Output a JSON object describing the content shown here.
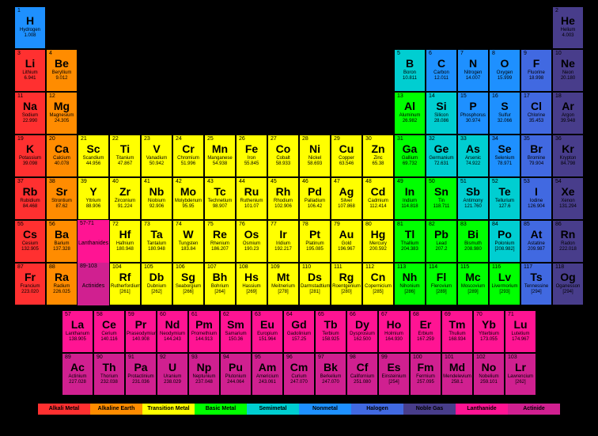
{
  "colors": {
    "alkali": "#ff3030",
    "alkaline": "#ff8c00",
    "transition": "#ffff00",
    "basic": "#00ff00",
    "semimetal": "#00ced1",
    "nonmetal": "#1e90ff",
    "halogen": "#4169e1",
    "noble": "#483d8b",
    "lanthanide": "#ff1493",
    "actinide": "#d02090",
    "bg": "#000000"
  },
  "cell": {
    "w": 40,
    "h": 54
  },
  "legend": [
    {
      "label": "Alkali Metal",
      "color": "#ff3030"
    },
    {
      "label": "Alkaline Earth",
      "color": "#ff8c00"
    },
    {
      "label": "Transition Metal",
      "color": "#ffff00"
    },
    {
      "label": "Basic Metal",
      "color": "#00ff00"
    },
    {
      "label": "Semimetal",
      "color": "#00ced1"
    },
    {
      "label": "Nonmetal",
      "color": "#1e90ff"
    },
    {
      "label": "Halogen",
      "color": "#4169e1"
    },
    {
      "label": "Noble Gas",
      "color": "#483d8b"
    },
    {
      "label": "Lanthanide",
      "color": "#ff1493"
    },
    {
      "label": "Actinide",
      "color": "#d02090"
    }
  ],
  "placeholders": [
    {
      "row": 5,
      "col": 2,
      "range": "57-71",
      "label": "Lanthanides",
      "cat": "lanthanide"
    },
    {
      "row": 6,
      "col": 2,
      "range": "89-103",
      "label": "Actinides",
      "cat": "actinide"
    }
  ],
  "elements": [
    {
      "n": 1,
      "s": "H",
      "nm": "Hydrogen",
      "m": "1.008",
      "r": 0,
      "c": 0,
      "cat": "nonmetal"
    },
    {
      "n": 2,
      "s": "He",
      "nm": "Helium",
      "m": "4.003",
      "r": 0,
      "c": 17,
      "cat": "noble"
    },
    {
      "n": 3,
      "s": "Li",
      "nm": "Lithium",
      "m": "6.941",
      "r": 1,
      "c": 0,
      "cat": "alkali"
    },
    {
      "n": 4,
      "s": "Be",
      "nm": "Beryllium",
      "m": "9.012",
      "r": 1,
      "c": 1,
      "cat": "alkaline"
    },
    {
      "n": 5,
      "s": "B",
      "nm": "Boron",
      "m": "10.811",
      "r": 1,
      "c": 12,
      "cat": "semimetal"
    },
    {
      "n": 6,
      "s": "C",
      "nm": "Carbon",
      "m": "12.011",
      "r": 1,
      "c": 13,
      "cat": "nonmetal"
    },
    {
      "n": 7,
      "s": "N",
      "nm": "Nitrogen",
      "m": "14.007",
      "r": 1,
      "c": 14,
      "cat": "nonmetal"
    },
    {
      "n": 8,
      "s": "O",
      "nm": "Oxygen",
      "m": "15.999",
      "r": 1,
      "c": 15,
      "cat": "nonmetal"
    },
    {
      "n": 9,
      "s": "F",
      "nm": "Fluorine",
      "m": "18.998",
      "r": 1,
      "c": 16,
      "cat": "halogen"
    },
    {
      "n": 10,
      "s": "Ne",
      "nm": "Neon",
      "m": "20.180",
      "r": 1,
      "c": 17,
      "cat": "noble"
    },
    {
      "n": 11,
      "s": "Na",
      "nm": "Sodium",
      "m": "22.990",
      "r": 2,
      "c": 0,
      "cat": "alkali"
    },
    {
      "n": 12,
      "s": "Mg",
      "nm": "Magnesium",
      "m": "24.305",
      "r": 2,
      "c": 1,
      "cat": "alkaline"
    },
    {
      "n": 13,
      "s": "Al",
      "nm": "Aluminum",
      "m": "26.982",
      "r": 2,
      "c": 12,
      "cat": "basic"
    },
    {
      "n": 14,
      "s": "Si",
      "nm": "Silicon",
      "m": "28.086",
      "r": 2,
      "c": 13,
      "cat": "semimetal"
    },
    {
      "n": 15,
      "s": "P",
      "nm": "Phosphorus",
      "m": "30.974",
      "r": 2,
      "c": 14,
      "cat": "nonmetal"
    },
    {
      "n": 16,
      "s": "S",
      "nm": "Sulfur",
      "m": "32.066",
      "r": 2,
      "c": 15,
      "cat": "nonmetal"
    },
    {
      "n": 17,
      "s": "Cl",
      "nm": "Chlorine",
      "m": "35.453",
      "r": 2,
      "c": 16,
      "cat": "halogen"
    },
    {
      "n": 18,
      "s": "Ar",
      "nm": "Argon",
      "m": "39.948",
      "r": 2,
      "c": 17,
      "cat": "noble"
    },
    {
      "n": 19,
      "s": "K",
      "nm": "Potassium",
      "m": "39.098",
      "r": 3,
      "c": 0,
      "cat": "alkali"
    },
    {
      "n": 20,
      "s": "Ca",
      "nm": "Calcium",
      "m": "40.078",
      "r": 3,
      "c": 1,
      "cat": "alkaline"
    },
    {
      "n": 21,
      "s": "Sc",
      "nm": "Scandium",
      "m": "44.956",
      "r": 3,
      "c": 2,
      "cat": "transition"
    },
    {
      "n": 22,
      "s": "Ti",
      "nm": "Titanium",
      "m": "47.867",
      "r": 3,
      "c": 3,
      "cat": "transition"
    },
    {
      "n": 23,
      "s": "V",
      "nm": "Vanadium",
      "m": "50.942",
      "r": 3,
      "c": 4,
      "cat": "transition"
    },
    {
      "n": 24,
      "s": "Cr",
      "nm": "Chromium",
      "m": "51.996",
      "r": 3,
      "c": 5,
      "cat": "transition"
    },
    {
      "n": 25,
      "s": "Mn",
      "nm": "Manganese",
      "m": "54.938",
      "r": 3,
      "c": 6,
      "cat": "transition"
    },
    {
      "n": 26,
      "s": "Fe",
      "nm": "Iron",
      "m": "55.845",
      "r": 3,
      "c": 7,
      "cat": "transition"
    },
    {
      "n": 27,
      "s": "Co",
      "nm": "Cobalt",
      "m": "58.933",
      "r": 3,
      "c": 8,
      "cat": "transition"
    },
    {
      "n": 28,
      "s": "Ni",
      "nm": "Nickel",
      "m": "58.693",
      "r": 3,
      "c": 9,
      "cat": "transition"
    },
    {
      "n": 29,
      "s": "Cu",
      "nm": "Copper",
      "m": "63.546",
      "r": 3,
      "c": 10,
      "cat": "transition"
    },
    {
      "n": 30,
      "s": "Zn",
      "nm": "Zinc",
      "m": "65.38",
      "r": 3,
      "c": 11,
      "cat": "transition"
    },
    {
      "n": 31,
      "s": "Ga",
      "nm": "Gallium",
      "m": "69.732",
      "r": 3,
      "c": 12,
      "cat": "basic"
    },
    {
      "n": 32,
      "s": "Ge",
      "nm": "Germanium",
      "m": "72.631",
      "r": 3,
      "c": 13,
      "cat": "semimetal"
    },
    {
      "n": 33,
      "s": "As",
      "nm": "Arsenic",
      "m": "74.922",
      "r": 3,
      "c": 14,
      "cat": "semimetal"
    },
    {
      "n": 34,
      "s": "Se",
      "nm": "Selenium",
      "m": "78.971",
      "r": 3,
      "c": 15,
      "cat": "nonmetal"
    },
    {
      "n": 35,
      "s": "Br",
      "nm": "Bromine",
      "m": "79.904",
      "r": 3,
      "c": 16,
      "cat": "halogen"
    },
    {
      "n": 36,
      "s": "Kr",
      "nm": "Krypton",
      "m": "84.798",
      "r": 3,
      "c": 17,
      "cat": "noble"
    },
    {
      "n": 37,
      "s": "Rb",
      "nm": "Rubidium",
      "m": "84.468",
      "r": 4,
      "c": 0,
      "cat": "alkali"
    },
    {
      "n": 38,
      "s": "Sr",
      "nm": "Strontium",
      "m": "87.62",
      "r": 4,
      "c": 1,
      "cat": "alkaline"
    },
    {
      "n": 39,
      "s": "Y",
      "nm": "Yttrium",
      "m": "88.906",
      "r": 4,
      "c": 2,
      "cat": "transition"
    },
    {
      "n": 40,
      "s": "Zr",
      "nm": "Zirconium",
      "m": "91.224",
      "r": 4,
      "c": 3,
      "cat": "transition"
    },
    {
      "n": 41,
      "s": "Nb",
      "nm": "Niobium",
      "m": "92.906",
      "r": 4,
      "c": 4,
      "cat": "transition"
    },
    {
      "n": 42,
      "s": "Mo",
      "nm": "Molybdenum",
      "m": "95.95",
      "r": 4,
      "c": 5,
      "cat": "transition"
    },
    {
      "n": 43,
      "s": "Tc",
      "nm": "Technetium",
      "m": "98.907",
      "r": 4,
      "c": 6,
      "cat": "transition"
    },
    {
      "n": 44,
      "s": "Ru",
      "nm": "Ruthenium",
      "m": "101.07",
      "r": 4,
      "c": 7,
      "cat": "transition"
    },
    {
      "n": 45,
      "s": "Rh",
      "nm": "Rhodium",
      "m": "102.906",
      "r": 4,
      "c": 8,
      "cat": "transition"
    },
    {
      "n": 46,
      "s": "Pd",
      "nm": "Palladium",
      "m": "106.42",
      "r": 4,
      "c": 9,
      "cat": "transition"
    },
    {
      "n": 47,
      "s": "Ag",
      "nm": "Silver",
      "m": "107.868",
      "r": 4,
      "c": 10,
      "cat": "transition"
    },
    {
      "n": 48,
      "s": "Cd",
      "nm": "Cadmium",
      "m": "112.414",
      "r": 4,
      "c": 11,
      "cat": "transition"
    },
    {
      "n": 49,
      "s": "In",
      "nm": "Indium",
      "m": "114.818",
      "r": 4,
      "c": 12,
      "cat": "basic"
    },
    {
      "n": 50,
      "s": "Sn",
      "nm": "Tin",
      "m": "118.711",
      "r": 4,
      "c": 13,
      "cat": "basic"
    },
    {
      "n": 51,
      "s": "Sb",
      "nm": "Antimony",
      "m": "121.760",
      "r": 4,
      "c": 14,
      "cat": "semimetal"
    },
    {
      "n": 52,
      "s": "Te",
      "nm": "Tellurium",
      "m": "127.6",
      "r": 4,
      "c": 15,
      "cat": "semimetal"
    },
    {
      "n": 53,
      "s": "I",
      "nm": "Iodine",
      "m": "126.904",
      "r": 4,
      "c": 16,
      "cat": "halogen"
    },
    {
      "n": 54,
      "s": "Xe",
      "nm": "Xenon",
      "m": "131.294",
      "r": 4,
      "c": 17,
      "cat": "noble"
    },
    {
      "n": 55,
      "s": "Cs",
      "nm": "Cesium",
      "m": "132.905",
      "r": 5,
      "c": 0,
      "cat": "alkali"
    },
    {
      "n": 56,
      "s": "Ba",
      "nm": "Barium",
      "m": "137.328",
      "r": 5,
      "c": 1,
      "cat": "alkaline"
    },
    {
      "n": 72,
      "s": "Hf",
      "nm": "Hafnium",
      "m": "180.948",
      "r": 5,
      "c": 3,
      "cat": "transition"
    },
    {
      "n": 73,
      "s": "Ta",
      "nm": "Tantalum",
      "m": "180.948",
      "r": 5,
      "c": 4,
      "cat": "transition"
    },
    {
      "n": 74,
      "s": "W",
      "nm": "Tungsten",
      "m": "183.84",
      "r": 5,
      "c": 5,
      "cat": "transition"
    },
    {
      "n": 75,
      "s": "Re",
      "nm": "Rhenium",
      "m": "186.207",
      "r": 5,
      "c": 6,
      "cat": "transition"
    },
    {
      "n": 76,
      "s": "Os",
      "nm": "Osmium",
      "m": "190.23",
      "r": 5,
      "c": 7,
      "cat": "transition"
    },
    {
      "n": 77,
      "s": "Ir",
      "nm": "Iridium",
      "m": "192.217",
      "r": 5,
      "c": 8,
      "cat": "transition"
    },
    {
      "n": 78,
      "s": "Pt",
      "nm": "Platinum",
      "m": "195.085",
      "r": 5,
      "c": 9,
      "cat": "transition"
    },
    {
      "n": 79,
      "s": "Au",
      "nm": "Gold",
      "m": "196.967",
      "r": 5,
      "c": 10,
      "cat": "transition"
    },
    {
      "n": 80,
      "s": "Hg",
      "nm": "Mercury",
      "m": "200.592",
      "r": 5,
      "c": 11,
      "cat": "transition"
    },
    {
      "n": 81,
      "s": "Tl",
      "nm": "Thallium",
      "m": "204.383",
      "r": 5,
      "c": 12,
      "cat": "basic"
    },
    {
      "n": 82,
      "s": "Pb",
      "nm": "Lead",
      "m": "207.2",
      "r": 5,
      "c": 13,
      "cat": "basic"
    },
    {
      "n": 83,
      "s": "Bi",
      "nm": "Bismuth",
      "m": "208.980",
      "r": 5,
      "c": 14,
      "cat": "basic"
    },
    {
      "n": 84,
      "s": "Po",
      "nm": "Polonium",
      "m": "[208.982]",
      "r": 5,
      "c": 15,
      "cat": "semimetal"
    },
    {
      "n": 85,
      "s": "At",
      "nm": "Astatine",
      "m": "209.987",
      "r": 5,
      "c": 16,
      "cat": "halogen"
    },
    {
      "n": 86,
      "s": "Rn",
      "nm": "Radon",
      "m": "222.018",
      "r": 5,
      "c": 17,
      "cat": "noble"
    },
    {
      "n": 87,
      "s": "Fr",
      "nm": "Francium",
      "m": "223.020",
      "r": 6,
      "c": 0,
      "cat": "alkali"
    },
    {
      "n": 88,
      "s": "Ra",
      "nm": "Radium",
      "m": "226.025",
      "r": 6,
      "c": 1,
      "cat": "alkaline"
    },
    {
      "n": 104,
      "s": "Rf",
      "nm": "Rutherfordium",
      "m": "[261]",
      "r": 6,
      "c": 3,
      "cat": "transition"
    },
    {
      "n": 105,
      "s": "Db",
      "nm": "Dubnium",
      "m": "[262]",
      "r": 6,
      "c": 4,
      "cat": "transition"
    },
    {
      "n": 106,
      "s": "Sg",
      "nm": "Seaborgium",
      "m": "[266]",
      "r": 6,
      "c": 5,
      "cat": "transition"
    },
    {
      "n": 107,
      "s": "Bh",
      "nm": "Bohrium",
      "m": "[264]",
      "r": 6,
      "c": 6,
      "cat": "transition"
    },
    {
      "n": 108,
      "s": "Hs",
      "nm": "Hassium",
      "m": "[269]",
      "r": 6,
      "c": 7,
      "cat": "transition"
    },
    {
      "n": 109,
      "s": "Mt",
      "nm": "Meitnerium",
      "m": "[278]",
      "r": 6,
      "c": 8,
      "cat": "transition"
    },
    {
      "n": 110,
      "s": "Ds",
      "nm": "Darmstadtium",
      "m": "[281]",
      "r": 6,
      "c": 9,
      "cat": "transition"
    },
    {
      "n": 111,
      "s": "Rg",
      "nm": "Roentgenium",
      "m": "[280]",
      "r": 6,
      "c": 10,
      "cat": "transition"
    },
    {
      "n": 112,
      "s": "Cn",
      "nm": "Copernicium",
      "m": "[285]",
      "r": 6,
      "c": 11,
      "cat": "transition"
    },
    {
      "n": 113,
      "s": "Nh",
      "nm": "Nihonium",
      "m": "[286]",
      "r": 6,
      "c": 12,
      "cat": "basic"
    },
    {
      "n": 114,
      "s": "Fl",
      "nm": "Flerovium",
      "m": "[289]",
      "r": 6,
      "c": 13,
      "cat": "basic"
    },
    {
      "n": 115,
      "s": "Mc",
      "nm": "Moscovium",
      "m": "[289]",
      "r": 6,
      "c": 14,
      "cat": "basic"
    },
    {
      "n": 116,
      "s": "Lv",
      "nm": "Livermorium",
      "m": "[293]",
      "r": 6,
      "c": 15,
      "cat": "basic"
    },
    {
      "n": 117,
      "s": "Ts",
      "nm": "Tennessine",
      "m": "[294]",
      "r": 6,
      "c": 16,
      "cat": "halogen"
    },
    {
      "n": 118,
      "s": "Og",
      "nm": "Oganesson",
      "m": "[294]",
      "r": 6,
      "c": 17,
      "cat": "noble"
    }
  ],
  "fblock": [
    {
      "n": 57,
      "s": "La",
      "nm": "Lanthanum",
      "m": "138.905",
      "cat": "lanthanide"
    },
    {
      "n": 58,
      "s": "Ce",
      "nm": "Cerium",
      "m": "140.116",
      "cat": "lanthanide"
    },
    {
      "n": 59,
      "s": "Pr",
      "nm": "Praseodymium",
      "m": "140.908",
      "cat": "lanthanide"
    },
    {
      "n": 60,
      "s": "Nd",
      "nm": "Neodymium",
      "m": "144.243",
      "cat": "lanthanide"
    },
    {
      "n": 61,
      "s": "Pm",
      "nm": "Promethium",
      "m": "144.913",
      "cat": "lanthanide"
    },
    {
      "n": 62,
      "s": "Sm",
      "nm": "Samarium",
      "m": "150.36",
      "cat": "lanthanide"
    },
    {
      "n": 63,
      "s": "Eu",
      "nm": "Europium",
      "m": "151.964",
      "cat": "lanthanide"
    },
    {
      "n": 64,
      "s": "Gd",
      "nm": "Gadolinium",
      "m": "157.25",
      "cat": "lanthanide"
    },
    {
      "n": 65,
      "s": "Tb",
      "nm": "Terbium",
      "m": "158.925",
      "cat": "lanthanide"
    },
    {
      "n": 66,
      "s": "Dy",
      "nm": "Dysprosium",
      "m": "162.500",
      "cat": "lanthanide"
    },
    {
      "n": 67,
      "s": "Ho",
      "nm": "Holmium",
      "m": "164.930",
      "cat": "lanthanide"
    },
    {
      "n": 68,
      "s": "Er",
      "nm": "Erbium",
      "m": "167.259",
      "cat": "lanthanide"
    },
    {
      "n": 69,
      "s": "Tm",
      "nm": "Thulium",
      "m": "168.934",
      "cat": "lanthanide"
    },
    {
      "n": 70,
      "s": "Yb",
      "nm": "Ytterbium",
      "m": "173.055",
      "cat": "lanthanide"
    },
    {
      "n": 71,
      "s": "Lu",
      "nm": "Lutetium",
      "m": "174.967",
      "cat": "lanthanide"
    },
    {
      "n": 89,
      "s": "Ac",
      "nm": "Actinium",
      "m": "227.028",
      "cat": "actinide"
    },
    {
      "n": 90,
      "s": "Th",
      "nm": "Thorium",
      "m": "232.038",
      "cat": "actinide"
    },
    {
      "n": 91,
      "s": "Pa",
      "nm": "Protactinium",
      "m": "231.036",
      "cat": "actinide"
    },
    {
      "n": 92,
      "s": "U",
      "nm": "Uranium",
      "m": "238.029",
      "cat": "actinide"
    },
    {
      "n": 93,
      "s": "Np",
      "nm": "Neptunium",
      "m": "237.048",
      "cat": "actinide"
    },
    {
      "n": 94,
      "s": "Pu",
      "nm": "Plutonium",
      "m": "244.064",
      "cat": "actinide"
    },
    {
      "n": 95,
      "s": "Am",
      "nm": "Americium",
      "m": "243.061",
      "cat": "actinide"
    },
    {
      "n": 96,
      "s": "Cm",
      "nm": "Curium",
      "m": "247.070",
      "cat": "actinide"
    },
    {
      "n": 97,
      "s": "Bk",
      "nm": "Berkelium",
      "m": "247.070",
      "cat": "actinide"
    },
    {
      "n": 98,
      "s": "Cf",
      "nm": "Californium",
      "m": "251.080",
      "cat": "actinide"
    },
    {
      "n": 99,
      "s": "Es",
      "nm": "Einsteinium",
      "m": "[254]",
      "cat": "actinide"
    },
    {
      "n": 100,
      "s": "Fm",
      "nm": "Fermium",
      "m": "257.095",
      "cat": "actinide"
    },
    {
      "n": 101,
      "s": "Md",
      "nm": "Mendelevium",
      "m": "258.1",
      "cat": "actinide"
    },
    {
      "n": 102,
      "s": "No",
      "nm": "Nobelium",
      "m": "259.101",
      "cat": "actinide"
    },
    {
      "n": 103,
      "s": "Lr",
      "nm": "Lawrencium",
      "m": "[262]",
      "cat": "actinide"
    }
  ]
}
